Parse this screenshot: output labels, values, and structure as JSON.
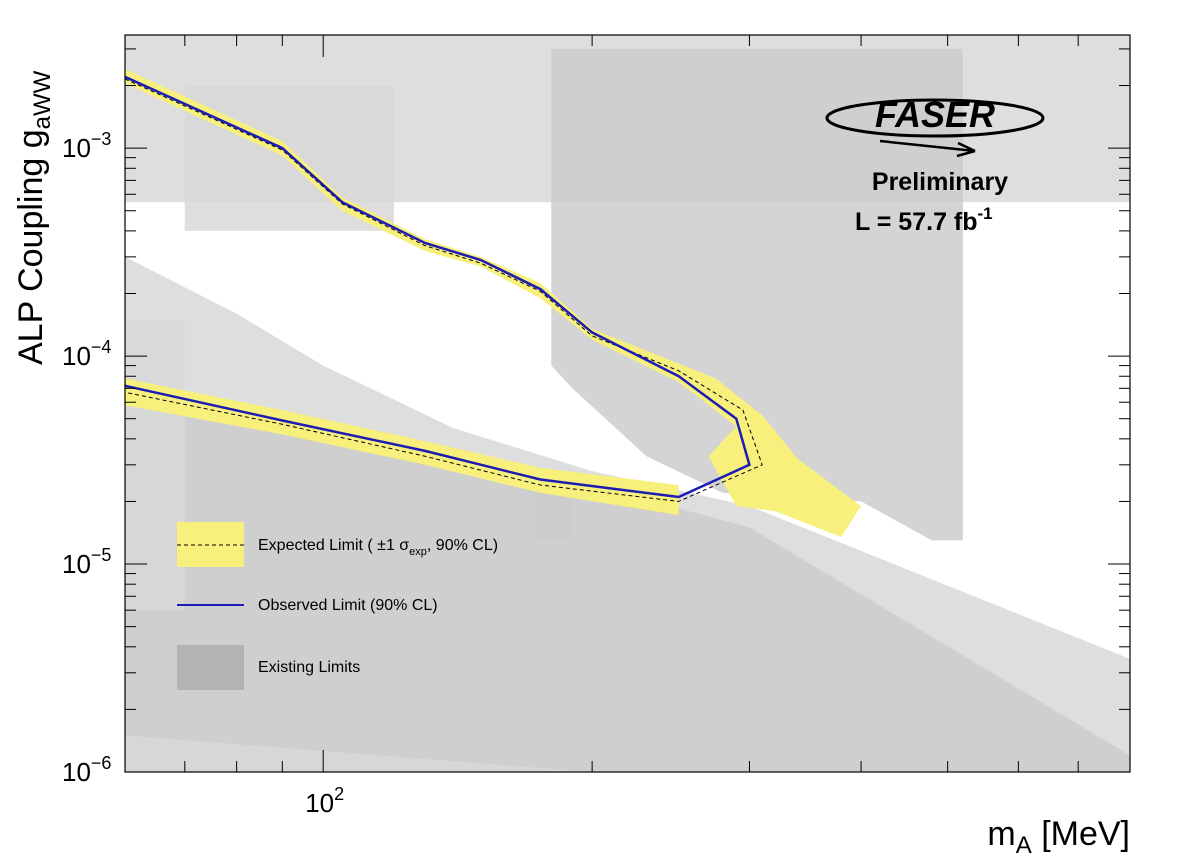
{
  "chart_data": {
    "type": "line",
    "title": "",
    "xlabel": {
      "main": "m",
      "sub": "A",
      "rest": " [MeV]"
    },
    "ylabel": {
      "main": "ALP Coupling g",
      "sub": "aWW"
    },
    "xscale": "log",
    "yscale": "log",
    "xlim": [
      60,
      800
    ],
    "ylim": [
      1e-06,
      0.0035
    ],
    "x_tick_labels": [
      {
        "value": 100,
        "base": "10",
        "exp": "2"
      }
    ],
    "y_tick_labels": [
      {
        "value": 0.001,
        "base": "10",
        "exp": "−3"
      },
      {
        "value": 0.0001,
        "base": "10",
        "exp": "−4"
      },
      {
        "value": 1e-05,
        "base": "10",
        "exp": "−5"
      },
      {
        "value": 1e-06,
        "base": "10",
        "exp": "−6"
      }
    ],
    "logo": {
      "text": "FASER",
      "line1": "Preliminary",
      "line2_pre": "L = 57.7 fb",
      "line2_sup": "-1"
    },
    "legend": {
      "placement": "bottom-left",
      "expected": {
        "pre": "Expected Limit ( ±1 σ",
        "sub": "exp",
        "post": ", 90% CL)"
      },
      "observed": "Observed Limit (90% CL)",
      "existing": "Existing Limits"
    },
    "colors": {
      "observed": "#1c1cb4",
      "expected": "#000000",
      "band": "#f7f07c",
      "existing_light": "#d8d8d8",
      "existing_mid": "#cccccc",
      "existing_dark": "#bdbdbd"
    },
    "series": [
      {
        "name": "Observed Limit (90% CL)",
        "x": [
          60,
          90,
          105,
          130,
          150,
          175,
          200,
          250,
          290,
          300,
          250,
          175,
          130,
          90,
          60
        ],
        "y": [
          0.0022,
          0.001,
          0.00055,
          0.00035,
          0.00029,
          0.00021,
          0.00013,
          8e-05,
          5e-05,
          3e-05,
          2.1e-05,
          2.55e-05,
          3.5e-05,
          4.9e-05,
          7.2e-05
        ]
      },
      {
        "name": "Expected Limit (±1 σexp, 90% CL)",
        "x": [
          60,
          90,
          105,
          130,
          150,
          175,
          200,
          250,
          295,
          310,
          250,
          175,
          130,
          90,
          60
        ],
        "y": [
          0.00215,
          0.00098,
          0.00054,
          0.00034,
          0.00028,
          0.000205,
          0.000125,
          8.5e-05,
          5.5e-05,
          3e-05,
          2e-05,
          2.4e-05,
          3.3e-05,
          4.7e-05,
          6.7e-05
        ]
      }
    ],
    "band": {
      "upper": [
        [
          60,
          0.0024
        ],
        [
          90,
          0.00108
        ],
        [
          105,
          0.00058
        ],
        [
          130,
          0.000365
        ],
        [
          150,
          0.0003
        ],
        [
          175,
          0.000225
        ],
        [
          200,
          0.000135
        ],
        [
          250,
          9.2e-05
        ],
        [
          275,
          7.8e-05
        ],
        [
          310,
          5.2e-05
        ],
        [
          340,
          3.2e-05
        ],
        [
          400,
          1.9e-05
        ]
      ],
      "lower": [
        [
          380,
          1.35e-05
        ],
        [
          320,
          1.8e-05
        ],
        [
          290,
          1.9e-05
        ],
        [
          270,
          3.3e-05
        ],
        [
          290,
          4.6e-05
        ],
        [
          250,
          7.5e-05
        ],
        [
          200,
          0.00012
        ],
        [
          175,
          0.00019
        ],
        [
          150,
          0.00027
        ],
        [
          130,
          0.00032
        ],
        [
          105,
          0.0005
        ],
        [
          90,
          0.00092
        ],
        [
          60,
          0.00205
        ]
      ],
      "lower_branch_upper": [
        [
          60,
          7.8e-05
        ],
        [
          90,
          5.5e-05
        ],
        [
          130,
          3.9e-05
        ],
        [
          175,
          2.9e-05
        ],
        [
          250,
          2.4e-05
        ]
      ],
      "lower_branch_lower": [
        [
          250,
          1.72e-05
        ],
        [
          175,
          2.2e-05
        ],
        [
          130,
          3e-05
        ],
        [
          90,
          4.2e-05
        ],
        [
          60,
          5.8e-05
        ]
      ]
    },
    "existing_limits": [
      {
        "shade": "existing_light",
        "points": [
          [
            60,
            0.0035
          ],
          [
            800,
            0.0035
          ],
          [
            800,
            0.00055
          ],
          [
            60,
            0.00055
          ]
        ]
      },
      {
        "shade": "existing_light",
        "points": [
          [
            70,
            0.002
          ],
          [
            120,
            0.002
          ],
          [
            120,
            0.0004
          ],
          [
            70,
            0.0004
          ]
        ]
      },
      {
        "shade": "existing_mid",
        "points": [
          [
            180,
            0.003
          ],
          [
            520,
            0.003
          ],
          [
            520,
            1.3e-05
          ],
          [
            480,
            1.3e-05
          ],
          [
            400,
            2e-05
          ],
          [
            280,
            2.2e-05
          ],
          [
            230,
            3.3e-05
          ],
          [
            190,
            7e-05
          ],
          [
            180,
            9e-05
          ]
        ]
      },
      {
        "shade": "existing_light",
        "points": [
          [
            60,
            0.0003
          ],
          [
            80,
            0.00016
          ],
          [
            100,
            9e-05
          ],
          [
            140,
            4.5e-05
          ],
          [
            200,
            2.8e-05
          ],
          [
            300,
            1.9e-05
          ],
          [
            800,
            3.5e-06
          ],
          [
            800,
            1e-06
          ],
          [
            60,
            1e-06
          ]
        ]
      },
      {
        "shade": "existing_mid",
        "points": [
          [
            60,
            7.5e-05
          ],
          [
            130,
            3.5e-05
          ],
          [
            200,
            2.4e-05
          ],
          [
            300,
            1.5e-05
          ],
          [
            800,
            1.2e-06
          ],
          [
            800,
            1e-06
          ],
          [
            60,
            1e-06
          ]
        ]
      },
      {
        "shade": "existing_light",
        "points": [
          [
            60,
            1.5e-06
          ],
          [
            200,
            1e-06
          ],
          [
            60,
            1e-06
          ]
        ]
      },
      {
        "shade": "existing_light",
        "points": [
          [
            60,
            0.00015
          ],
          [
            70,
            0.00015
          ],
          [
            70,
            6e-06
          ],
          [
            60,
            6e-06
          ]
        ]
      },
      {
        "shade": "existing_mid",
        "points": [
          [
            170,
            2.3e-05
          ],
          [
            190,
            2.3e-05
          ],
          [
            190,
            1.3e-05
          ],
          [
            170,
            1.3e-05
          ]
        ]
      }
    ]
  }
}
